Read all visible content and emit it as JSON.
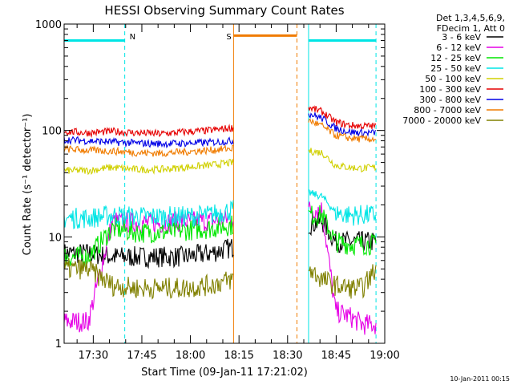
{
  "chart_data": {
    "type": "line",
    "title": "HESSI Observing Summary Count Rates",
    "xlabel": "Start Time (09-Jan-11 17:21:02)",
    "ylabel": "Count Rate (s⁻¹ detector⁻¹)",
    "ylim": [
      1,
      1000
    ],
    "yscale": "log",
    "xlim": [
      "17:21",
      "19:00"
    ],
    "x_ticks": [
      "17:30",
      "17:45",
      "18:00",
      "18:15",
      "18:30",
      "18:45",
      "19:00"
    ],
    "y_ticks": [
      "1",
      "10",
      "100",
      "1000"
    ],
    "legend_header": [
      "Det 1,3,4,5,6,9,",
      "FDecim 1, Att 0"
    ],
    "legend_position": "top-right",
    "footer": "10-Jan-2011 00:15",
    "segments": [
      [
        17.35,
        18.222
      ],
      [
        18.608,
        18.955
      ]
    ],
    "markers": [
      {
        "label": "N",
        "color": "#00e5e5",
        "style": "dashed",
        "x": 17.662
      },
      {
        "label": "N",
        "color": "#00e5e5",
        "style": "solid",
        "x": 18.608
      },
      {
        "label": "N",
        "color": "#00e5e5",
        "style": "dashed",
        "x": 18.955
      },
      {
        "label": "S",
        "color": "#f07c00",
        "style": "solid",
        "x": 18.222
      },
      {
        "label": "S",
        "color": "#f07c00",
        "style": "dashed",
        "x": 18.548
      }
    ],
    "flags": [
      {
        "label": "N",
        "color": "#00e5e5",
        "y": 700,
        "ranges": [
          [
            17.35,
            17.662
          ],
          [
            18.608,
            18.955
          ]
        ]
      },
      {
        "label": "S",
        "color": "#f07c00",
        "y": 780,
        "ranges": [
          [
            18.222,
            18.548
          ]
        ]
      }
    ],
    "series": [
      {
        "name": "3 - 6 keV",
        "color": "#000000",
        "segment1": [
          7,
          7,
          6.5,
          6.5,
          6.5,
          6.5,
          7,
          8
        ],
        "segment2": [
          13,
          14,
          9,
          9,
          9,
          9
        ]
      },
      {
        "name": "6 - 12 keV",
        "color": "#e600e6",
        "segment1": [
          1.6,
          1.6,
          14,
          13.5,
          13.5,
          14,
          14,
          15
        ],
        "segment2": [
          18,
          18,
          2,
          1.8,
          1.5,
          1.5
        ]
      },
      {
        "name": "12 - 25 keV",
        "color": "#00e600",
        "segment1": [
          6.5,
          6.5,
          12,
          11,
          11,
          11.5,
          12,
          13
        ],
        "segment2": [
          16,
          16,
          9,
          8.5,
          8.5,
          8.5
        ]
      },
      {
        "name": "25 - 50 keV",
        "color": "#00e5e5",
        "segment1": [
          15,
          15,
          16,
          15.5,
          15.5,
          15.5,
          16,
          18
        ],
        "segment2": [
          26,
          24,
          17,
          16,
          16,
          16
        ]
      },
      {
        "name": "50 - 100 keV",
        "color": "#d0d000",
        "segment1": [
          42,
          42,
          45,
          43,
          43,
          45,
          47,
          50
        ],
        "segment2": [
          64,
          62,
          47,
          45,
          44,
          45
        ]
      },
      {
        "name": "100 - 300 keV",
        "color": "#e60000",
        "segment1": [
          98,
          95,
          98,
          95,
          93,
          97,
          100,
          106
        ],
        "segment2": [
          165,
          150,
          120,
          112,
          110,
          110
        ]
      },
      {
        "name": "300 - 800 keV",
        "color": "#0000e6",
        "segment1": [
          82,
          80,
          78,
          76,
          75,
          76,
          77,
          80
        ],
        "segment2": [
          145,
          130,
          105,
          97,
          95,
          95
        ]
      },
      {
        "name": "800 - 7000 keV",
        "color": "#f07c00",
        "segment1": [
          67,
          65,
          64,
          62,
          61,
          63,
          65,
          68
        ],
        "segment2": [
          125,
          110,
          90,
          85,
          83,
          83
        ]
      },
      {
        "name": "7000 - 20000 keV",
        "color": "#808000",
        "segment1": [
          5,
          5,
          3.5,
          3.3,
          3.3,
          3.3,
          3.5,
          4
        ],
        "segment2": [
          5,
          4,
          3.5,
          3.3,
          3.3,
          5
        ]
      }
    ]
  }
}
